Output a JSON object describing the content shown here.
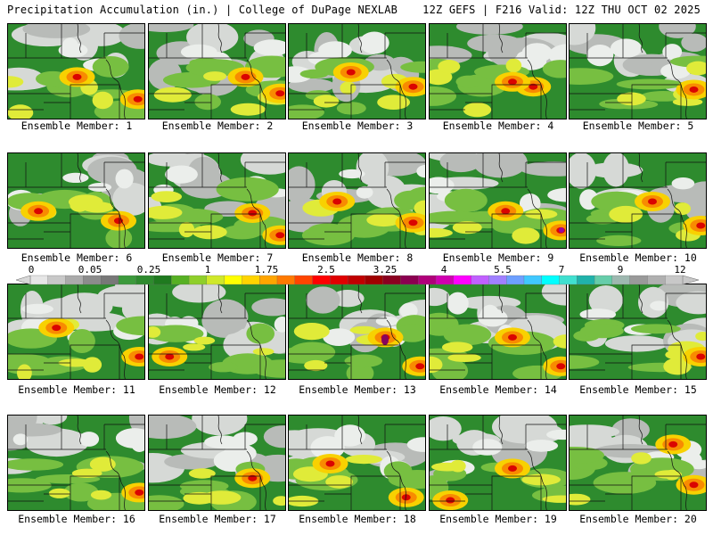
{
  "header": {
    "left": "Precipitation Accumulation (in.) | College of DuPage NEXLAB",
    "right": "12Z GEFS | F216 Valid: 12Z THU OCT 02 2025"
  },
  "colorbar": {
    "labels": [
      "0",
      "0.05",
      "0.25",
      "1",
      "1.75",
      "2.5",
      "3.25",
      "4",
      "5.5",
      "7",
      "9",
      "12"
    ],
    "colors": [
      "#e6e6e6",
      "#c8c8c8",
      "#aaaaaa",
      "#8c8c8c",
      "#787878",
      "#3c9a3c",
      "#2e8b2e",
      "#1f7a1f",
      "#56b023",
      "#8fcf2a",
      "#cfe82a",
      "#ffff00",
      "#ffd400",
      "#ffa500",
      "#ff7a00",
      "#ff4500",
      "#ff0000",
      "#e00000",
      "#c00000",
      "#a00000",
      "#8b0020",
      "#8b0050",
      "#b0007a",
      "#d000b0",
      "#ff00ff",
      "#c060ff",
      "#a080ff",
      "#6ea0ff",
      "#40c8ff",
      "#00ffff",
      "#40e0d0",
      "#20b2aa",
      "#66cdaa",
      "#9eb8b0",
      "#9a9a9a",
      "#b0b0b0",
      "#c8c8c8"
    ]
  },
  "members": [
    {
      "caption": "Ensemble Member: 1"
    },
    {
      "caption": "Ensemble Member: 2"
    },
    {
      "caption": "Ensemble Member: 3"
    },
    {
      "caption": "Ensemble Member: 4"
    },
    {
      "caption": "Ensemble Member: 5"
    },
    {
      "caption": "Ensemble Member: 6"
    },
    {
      "caption": "Ensemble Member: 7"
    },
    {
      "caption": "Ensemble Member: 8"
    },
    {
      "caption": "Ensemble Member: 9"
    },
    {
      "caption": "Ensemble Member: 10"
    },
    {
      "caption": "Ensemble Member: 11"
    },
    {
      "caption": "Ensemble Member: 12"
    },
    {
      "caption": "Ensemble Member: 13"
    },
    {
      "caption": "Ensemble Member: 14"
    },
    {
      "caption": "Ensemble Member: 15"
    },
    {
      "caption": "Ensemble Member: 16"
    },
    {
      "caption": "Ensemble Member: 17"
    },
    {
      "caption": "Ensemble Member: 18"
    },
    {
      "caption": "Ensemble Member: 19"
    },
    {
      "caption": "Ensemble Member: 20"
    }
  ]
}
